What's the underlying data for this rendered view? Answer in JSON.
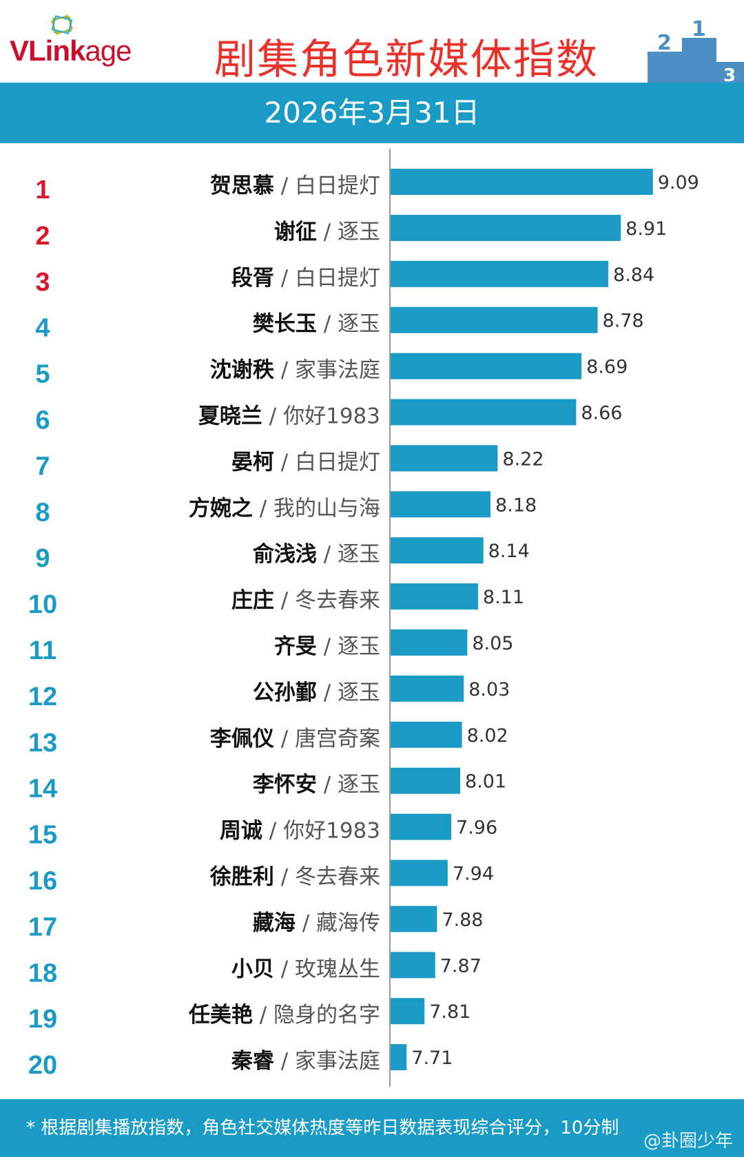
{
  "header": {
    "logo": {
      "main": "VLink",
      "suffix": "age"
    },
    "title": "剧集角色新媒体指数",
    "date": "2026年3月31日"
  },
  "colors": {
    "bar": "#1a9bc6",
    "top_rank": "#d7182a",
    "rank": "#1a9bc6",
    "title": "#e8322b"
  },
  "chart_data": {
    "type": "bar",
    "orientation": "horizontal",
    "title": "剧集角色新媒体指数",
    "xlim": [
      7.62,
      9.3
    ],
    "grid": false,
    "categories": [
      {
        "rank": "1",
        "name": "贺思慕",
        "drama": "白日提灯"
      },
      {
        "rank": "2",
        "name": "谢征",
        "drama": "逐玉"
      },
      {
        "rank": "3",
        "name": "段胥",
        "drama": "白日提灯"
      },
      {
        "rank": "4",
        "name": "樊长玉",
        "drama": "逐玉"
      },
      {
        "rank": "5",
        "name": "沈谢秩",
        "drama": "家事法庭"
      },
      {
        "rank": "6",
        "name": "夏晓兰",
        "drama": "你好1983"
      },
      {
        "rank": "7",
        "name": "晏柯",
        "drama": "白日提灯"
      },
      {
        "rank": "8",
        "name": "方婉之",
        "drama": "我的山与海"
      },
      {
        "rank": "9",
        "name": "俞浅浅",
        "drama": "逐玉"
      },
      {
        "rank": "10",
        "name": "庄庄",
        "drama": "冬去春来"
      },
      {
        "rank": "11",
        "name": "齐旻",
        "drama": "逐玉"
      },
      {
        "rank": "12",
        "name": "公孙鄞",
        "drama": "逐玉"
      },
      {
        "rank": "13",
        "name": "李佩仪",
        "drama": "唐宫奇案"
      },
      {
        "rank": "14",
        "name": "李怀安",
        "drama": "逐玉"
      },
      {
        "rank": "15",
        "name": "周诚",
        "drama": "你好1983"
      },
      {
        "rank": "16",
        "name": "徐胜利",
        "drama": "冬去春来"
      },
      {
        "rank": "17",
        "name": "藏海",
        "drama": "藏海传"
      },
      {
        "rank": "18",
        "name": "小贝",
        "drama": "玫瑰丛生"
      },
      {
        "rank": "19",
        "name": "任美艳",
        "drama": "隐身的名字"
      },
      {
        "rank": "20",
        "name": "秦睿",
        "drama": "家事法庭"
      }
    ],
    "values": [
      9.09,
      8.91,
      8.84,
      8.78,
      8.69,
      8.66,
      8.22,
      8.18,
      8.14,
      8.11,
      8.05,
      8.03,
      8.02,
      8.01,
      7.96,
      7.94,
      7.88,
      7.87,
      7.81,
      7.71
    ],
    "value_labels": [
      "9.09",
      "8.91",
      "8.84",
      "8.78",
      "8.69",
      "8.66",
      "8.22",
      "8.18",
      "8.14",
      "8.11",
      "8.05",
      "8.03",
      "8.02",
      "8.01",
      "7.96",
      "7.94",
      "7.88",
      "7.87",
      "7.81",
      "7.71"
    ],
    "separator": "/"
  },
  "footer": {
    "note": "* 根据剧集播放指数，角色社交媒体热度等昨日数据表现综合评分，10分制",
    "watermark": "@卦圈少年"
  }
}
